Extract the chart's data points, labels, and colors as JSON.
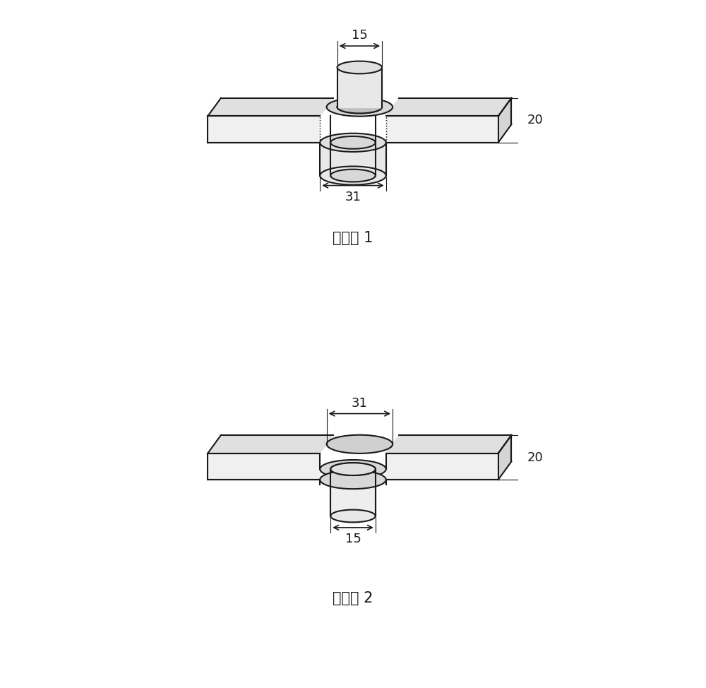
{
  "fig_width": 10.0,
  "fig_height": 9.74,
  "bg_color": "#ffffff",
  "line_color": "#1a1a1a",
  "label1": "剖视图 1",
  "label2": "剖视图 2",
  "dim_15": "15",
  "dim_31": "31",
  "dim_20": "20",
  "font_size_label": 15,
  "font_size_dim": 13
}
